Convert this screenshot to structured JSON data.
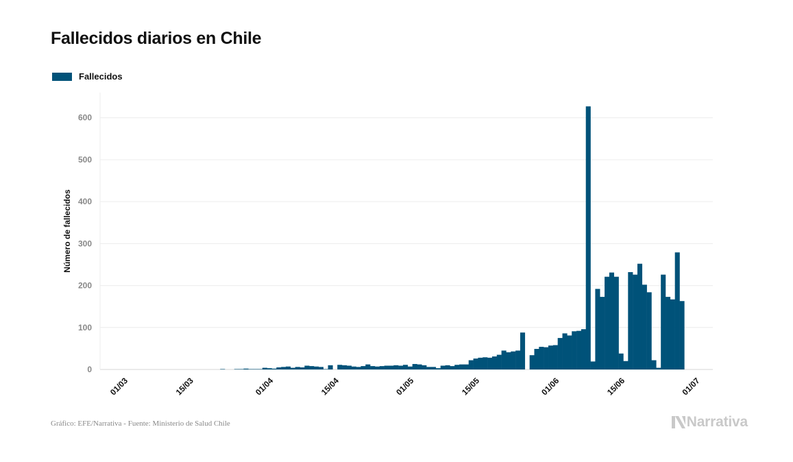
{
  "chart_data": {
    "type": "bar",
    "title": "Fallecidos diarios en Chile",
    "ylabel": "Número de fallecidos",
    "xlabel": "",
    "ylim": [
      0,
      660
    ],
    "y_ticks": [
      0,
      100,
      200,
      300,
      400,
      500,
      600
    ],
    "grid": true,
    "legend_position": "top-left",
    "x_start": "01/03",
    "x_ticks": [
      {
        "label": "01/03",
        "day": 0
      },
      {
        "label": "15/03",
        "day": 14
      },
      {
        "label": "01/04",
        "day": 31
      },
      {
        "label": "15/04",
        "day": 45
      },
      {
        "label": "01/05",
        "day": 61
      },
      {
        "label": "15/05",
        "day": 75
      },
      {
        "label": "01/06",
        "day": 92
      },
      {
        "label": "15/06",
        "day": 106
      },
      {
        "label": "01/07",
        "day": 122
      }
    ],
    "series": [
      {
        "name": "Fallecidos",
        "color": "#005279",
        "values": [
          0,
          0,
          0,
          0,
          0,
          0,
          0,
          0,
          0,
          0,
          0,
          0,
          0,
          0,
          0,
          0,
          0,
          0,
          0,
          0,
          0,
          1,
          0,
          0,
          1,
          1,
          2,
          1,
          1,
          1,
          4,
          3,
          2,
          5,
          6,
          7,
          4,
          6,
          5,
          9,
          8,
          7,
          6,
          1,
          10,
          0,
          11,
          10,
          9,
          7,
          6,
          8,
          12,
          8,
          7,
          8,
          9,
          9,
          10,
          9,
          11,
          7,
          13,
          12,
          10,
          6,
          6,
          3,
          9,
          10,
          8,
          11,
          12,
          12,
          22,
          26,
          28,
          29,
          28,
          31,
          35,
          45,
          41,
          43,
          45,
          88,
          0,
          34,
          49,
          54,
          53,
          57,
          58,
          75,
          86,
          81,
          91,
          92,
          96,
          627,
          19,
          192,
          173,
          221,
          231,
          221,
          38,
          20,
          232,
          226,
          252,
          202,
          184,
          22,
          4,
          226,
          173,
          167,
          279,
          163
        ]
      }
    ]
  },
  "footer": {
    "source": "Gráfico: EFE/Narrativa - Fuente: Ministerio de Salud Chile",
    "brand": "Narrativa"
  }
}
